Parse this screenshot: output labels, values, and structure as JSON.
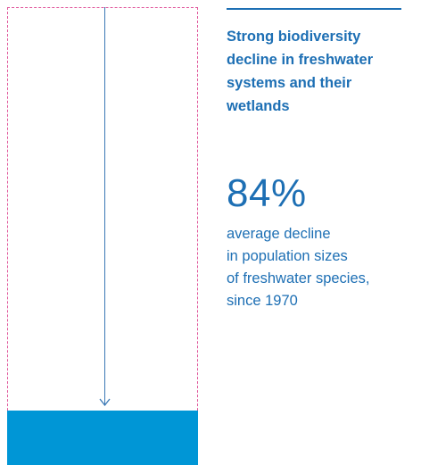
{
  "colors": {
    "accent_blue": "#1d6fb4",
    "fill_blue": "#0096d6",
    "frame_pink": "#e0559a"
  },
  "infographic": {
    "headline": "Strong biodiversity\ndecline in freshwater\nsystems and their\nwetlands",
    "stat_value": "84%",
    "stat_description": "average decline\nin population sizes\nof freshwater species,\nsince 1970",
    "remaining_share_percent": 16,
    "decline_percent": 84
  }
}
